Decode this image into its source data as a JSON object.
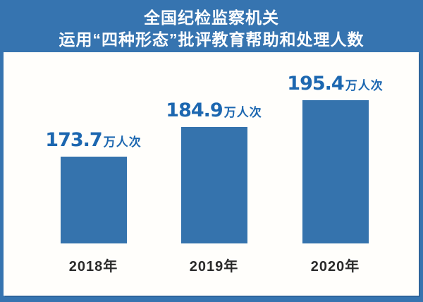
{
  "title": {
    "line1": "全国纪检监察机关",
    "line2": "运用“四种形态”批评教育帮助和处理人数"
  },
  "chart_data": {
    "type": "bar",
    "title": "全国纪检监察机关运用“四种形态”批评教育帮助和处理人数",
    "categories": [
      "2018年",
      "2019年",
      "2020年"
    ],
    "values": [
      173.7,
      184.9,
      195.4
    ],
    "unit_label": "万人次",
    "value_labels": [
      "173.7万人次",
      "184.9万人次",
      "195.4万人次"
    ],
    "xlabel": "",
    "ylabel": "",
    "ylim": [
      140,
      210
    ],
    "grid": false,
    "legend": false,
    "orientation": "vertical"
  },
  "colors": {
    "background_blue": "#3674b0",
    "bar_blue": "#3573ad",
    "value_label_blue": "#1c67b0",
    "year_label_dark": "#2a2a2a",
    "panel_white": "#fffefb",
    "title_white": "#ffffff"
  }
}
